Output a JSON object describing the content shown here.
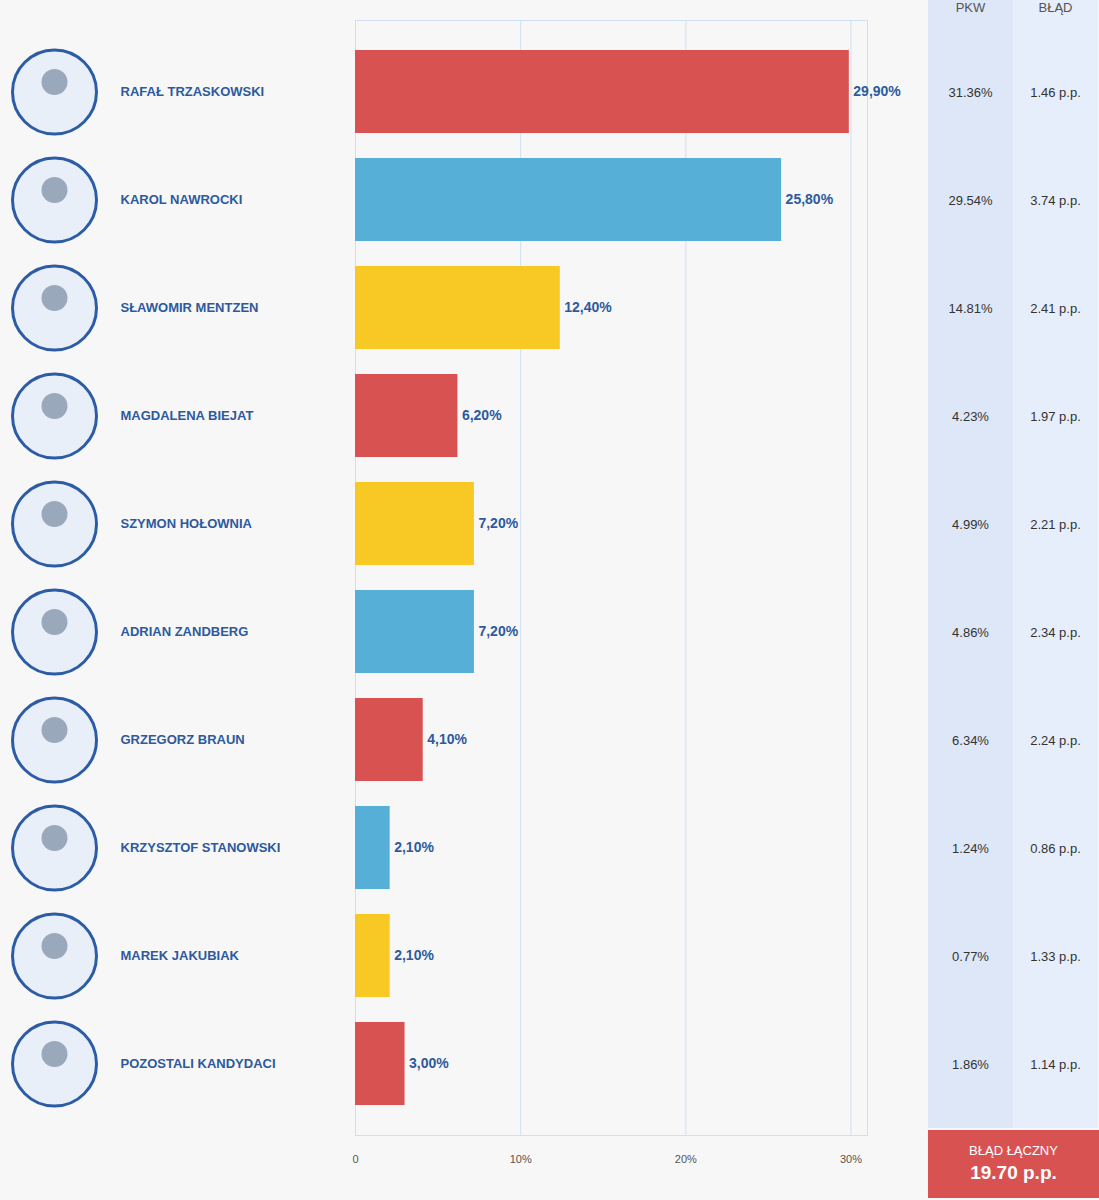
{
  "chart_data": {
    "type": "bar",
    "orientation": "horizontal",
    "categories": [
      "RAFAŁ TRZASKOWSKI",
      "KAROL NAWROCKI",
      "SŁAWOMIR MENTZEN",
      "MAGDALENA BIEJAT",
      "SZYMON HOŁOWNIA",
      "ADRIAN ZANDBERG",
      "GRZEGORZ BRAUN",
      "KRZYSZTOF STANOWSKI",
      "MAREK JAKUBIAK",
      "POZOSTALI KANDYDACI"
    ],
    "values": [
      29.9,
      25.8,
      12.4,
      6.2,
      7.2,
      7.2,
      4.1,
      2.1,
      2.1,
      3.0
    ],
    "value_labels": [
      "29,90%",
      "25,80%",
      "12,40%",
      "6,20%",
      "7,20%",
      "7,20%",
      "4,10%",
      "2,10%",
      "2,10%",
      "3,00%"
    ],
    "colors": [
      "#d95252",
      "#55afd6",
      "#f8c825",
      "#d95252",
      "#f8c825",
      "#55afd6",
      "#d95252",
      "#55afd6",
      "#f8c825",
      "#d95252"
    ],
    "xlim": [
      0,
      31
    ],
    "xticks": [
      0,
      {
        "value": 10,
        "label": "10%"
      },
      {
        "value": 20,
        "label": "20%"
      },
      {
        "value": 30,
        "label": "30%"
      }
    ],
    "grid": true,
    "data_labels": true
  },
  "table": {
    "columns": [
      "PKW",
      "BŁĄD"
    ],
    "rows": [
      [
        "31.36%",
        "1.46 p.p."
      ],
      [
        "29.54%",
        "3.74 p.p."
      ],
      [
        "14.81%",
        "2.41 p.p."
      ],
      [
        "4.23%",
        "1.97 p.p."
      ],
      [
        "4.99%",
        "2.21 p.p."
      ],
      [
        "4.86%",
        "2.34 p.p."
      ],
      [
        "6.34%",
        "2.24 p.p."
      ],
      [
        "1.24%",
        "0.86 p.p."
      ],
      [
        "0.77%",
        "1.33 p.p."
      ],
      [
        "1.86%",
        "1.14 p.p."
      ]
    ],
    "total": {
      "label": "BŁĄD ŁĄCZNY",
      "value": "19.70 p.p."
    }
  }
}
